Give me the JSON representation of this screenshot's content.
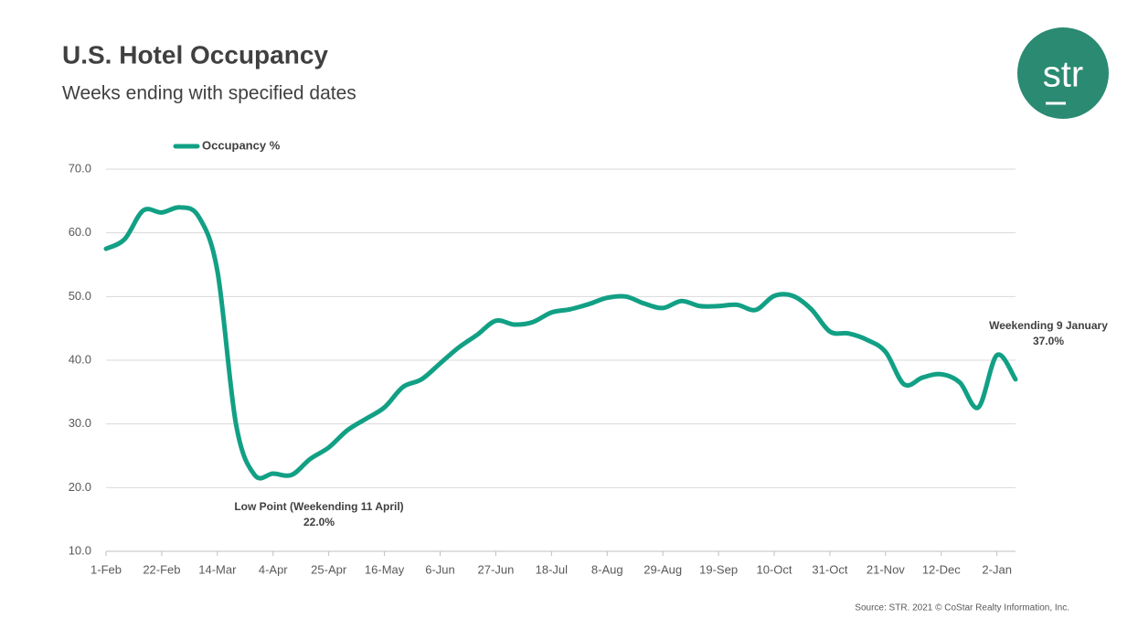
{
  "title": "U.S. Hotel Occupancy",
  "subtitle": "Weeks ending with specified dates",
  "logo": "str",
  "source": "Source: STR. 2021 © CoStar Realty Information, Inc.",
  "chart_data": {
    "type": "line",
    "categories": [
      "1-Feb",
      null,
      null,
      "22-Feb",
      null,
      null,
      "14-Mar",
      null,
      null,
      "4-Apr",
      null,
      null,
      "25-Apr",
      null,
      null,
      "16-May",
      null,
      null,
      "6-Jun",
      null,
      null,
      "27-Jun",
      null,
      null,
      "18-Jul",
      null,
      null,
      "8-Aug",
      null,
      null,
      "29-Aug",
      null,
      null,
      "19-Sep",
      null,
      null,
      "10-Oct",
      null,
      null,
      "31-Oct",
      null,
      null,
      "21-Nov",
      null,
      null,
      "12-Dec",
      null,
      null,
      "2-Jan",
      null
    ],
    "series": [
      {
        "name": "Occupancy %",
        "color": "#12a085",
        "values": [
          57.5,
          59,
          63.5,
          63.2,
          64,
          62.5,
          54,
          30,
          22,
          22.2,
          22.0,
          24.5,
          26.3,
          29,
          30.8,
          32.6,
          35.8,
          37,
          39.5,
          42,
          44,
          46.2,
          45.6,
          46,
          47.5,
          48,
          48.8,
          49.8,
          50,
          48.9,
          48.2,
          49.3,
          48.5,
          48.5,
          48.7,
          47.9,
          50.1,
          50.1,
          48,
          44.5,
          44.2,
          43.2,
          41.3,
          36.2,
          37.3,
          37.8,
          36.5,
          32.6,
          40.8,
          37.0
        ]
      }
    ],
    "ylim": [
      10,
      70
    ],
    "yticks": [
      {
        "value": 10,
        "label": "10.0"
      },
      {
        "value": 20,
        "label": "20.0"
      },
      {
        "value": 30,
        "label": "30.0"
      },
      {
        "value": 40,
        "label": "40.0"
      },
      {
        "value": 50,
        "label": "50.0"
      },
      {
        "value": 60,
        "label": "60.0"
      },
      {
        "value": 70,
        "label": "70.0"
      }
    ],
    "grid": true,
    "legend": "top-left",
    "annotations": [
      {
        "lines": [
          "Low Point (Weekending 11 April)",
          "22.0%"
        ]
      },
      {
        "lines": [
          "Weekending 9 January",
          "37.0%"
        ]
      }
    ]
  }
}
